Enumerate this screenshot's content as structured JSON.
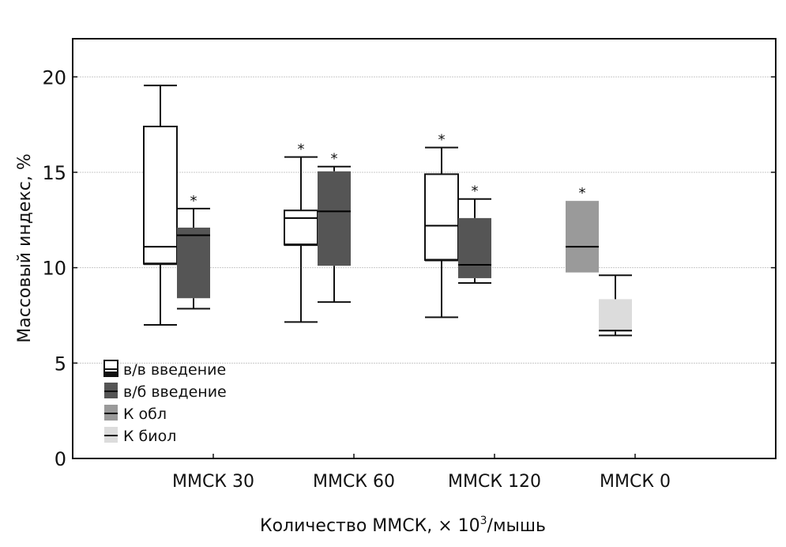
{
  "chart_data": {
    "type": "boxplot",
    "title": "",
    "xlabel": "Количество ММСК, × 10",
    "xlabel_sup": "3",
    "xlabel_suffix": "/мышь",
    "ylabel": "Массовый индекс, %",
    "ylim": [
      0,
      22
    ],
    "yticks": [
      0,
      5,
      10,
      15,
      20
    ],
    "grid": true,
    "legend_position": "bottom-left",
    "categories": [
      "ММСК 30",
      "ММСК 60",
      "ММСК 120",
      "ММСК 0"
    ],
    "series": [
      {
        "name": "в/в введение",
        "color": "#ffffff",
        "median_color": "#000000"
      },
      {
        "name": "в/б введение",
        "color": "#555555",
        "median_color": "#000000"
      },
      {
        "name": "К обл",
        "color": "#9a9a9a",
        "median_color": "#000000"
      },
      {
        "name": "К биол",
        "color": "#dcdcdc",
        "median_color": "#000000"
      }
    ],
    "boxes": [
      {
        "category": "ММСК 30",
        "series": "в/в введение",
        "whisker_low": 7.0,
        "q1": 10.2,
        "median": 11.1,
        "q3": 17.4,
        "whisker_high": 19.55,
        "significant": false
      },
      {
        "category": "ММСК 30",
        "series": "в/б введение",
        "whisker_low": 7.85,
        "q1": 8.4,
        "median": 11.7,
        "q3": 12.1,
        "whisker_high": 13.1,
        "significant": true
      },
      {
        "category": "ММСК 60",
        "series": "в/в введение",
        "whisker_low": 7.15,
        "q1": 11.2,
        "median": 12.6,
        "q3": 13.0,
        "whisker_high": 15.8,
        "significant": true
      },
      {
        "category": "ММСК 60",
        "series": "в/б введение",
        "whisker_low": 8.2,
        "q1": 10.1,
        "median": 12.95,
        "q3": 15.05,
        "whisker_high": 15.3,
        "significant": true
      },
      {
        "category": "ММСК 120",
        "series": "в/в введение",
        "whisker_low": 7.4,
        "q1": 10.4,
        "median": 12.2,
        "q3": 14.9,
        "whisker_high": 16.3,
        "significant": true
      },
      {
        "category": "ММСК 120",
        "series": "в/б введение",
        "whisker_low": 9.2,
        "q1": 9.45,
        "median": 10.15,
        "q3": 12.6,
        "whisker_high": 13.6,
        "significant": true
      },
      {
        "category": "ММСК 0",
        "series": "К обл",
        "whisker_low": 9.75,
        "q1": 9.75,
        "median": 11.1,
        "q3": 13.5,
        "whisker_high": 13.5,
        "significant": true
      },
      {
        "category": "ММСК 0",
        "series": "К биол",
        "whisker_low": 6.45,
        "q1": 6.65,
        "median": 6.7,
        "q3": 8.35,
        "whisker_high": 9.6,
        "significant": false
      }
    ],
    "significance_marker": "*"
  }
}
